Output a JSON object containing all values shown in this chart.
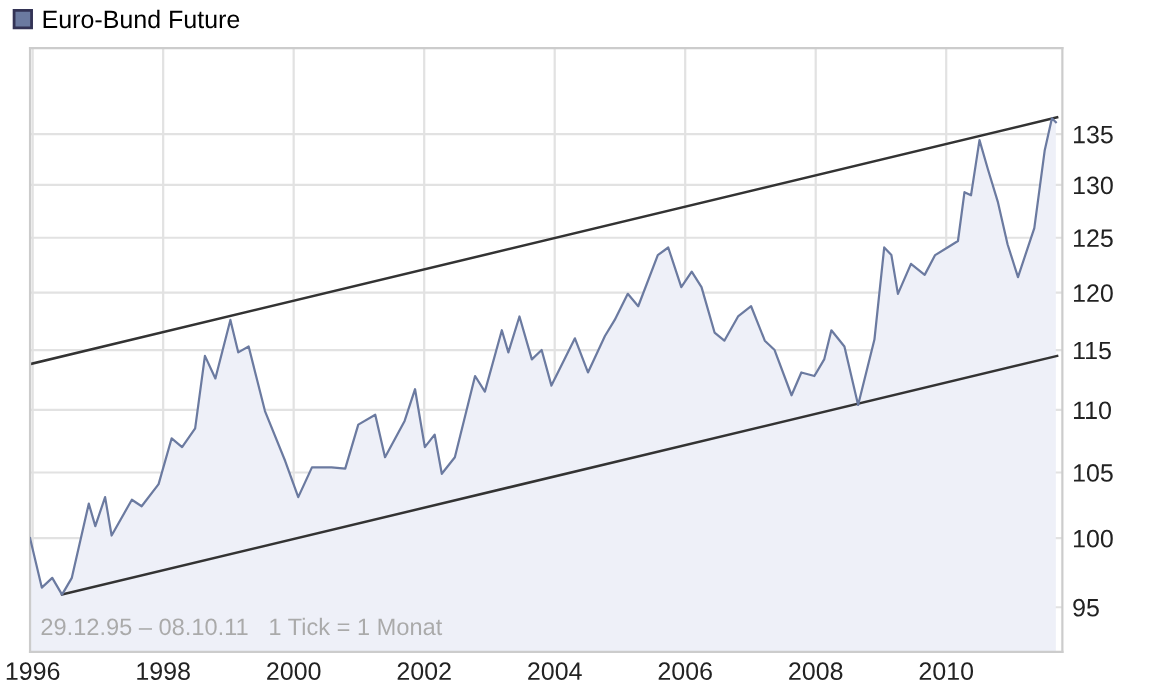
{
  "chart_data": {
    "type": "area",
    "legend": "top left",
    "grid": true,
    "log": "y",
    "xlim": [
      1995.96,
      2011.78
    ],
    "ylim": [
      91.9,
      143.9
    ],
    "xticks": [
      {
        "value": 1996,
        "label": "1996"
      },
      {
        "value": 1998,
        "label": "1998"
      },
      {
        "value": 2000,
        "label": "2000"
      },
      {
        "value": 2002,
        "label": "2002"
      },
      {
        "value": 2004,
        "label": "2004"
      },
      {
        "value": 2006,
        "label": "2006"
      },
      {
        "value": 2008,
        "label": "2008"
      },
      {
        "value": 2010,
        "label": "2010"
      }
    ],
    "yticks": [
      95,
      100,
      105,
      110,
      115,
      120,
      125,
      130,
      135
    ],
    "annotations": [
      "29.12.95 – 08.10.11   1 Tick = 1 Monat"
    ],
    "series": [
      {
        "name": "Euro-Bund Future",
        "color": "#6b7aa0",
        "x": [
          1995.96,
          1996.14,
          1996.3,
          1996.45,
          1996.6,
          1996.86,
          1996.96,
          1997.11,
          1997.21,
          1997.52,
          1997.67,
          1997.93,
          1998.13,
          1998.29,
          1998.49,
          1998.64,
          1998.8,
          1999.03,
          1999.15,
          1999.31,
          1999.56,
          1999.87,
          2000.07,
          2000.28,
          2000.58,
          2000.79,
          2000.99,
          2001.25,
          2001.4,
          2001.7,
          2001.86,
          2002.01,
          2002.16,
          2002.27,
          2002.47,
          2002.78,
          2002.93,
          2003.19,
          2003.29,
          2003.46,
          2003.65,
          2003.8,
          2003.95,
          2004.31,
          2004.51,
          2004.77,
          2004.92,
          2005.12,
          2005.28,
          2005.58,
          2005.74,
          2005.94,
          2006.1,
          2006.25,
          2006.45,
          2006.6,
          2006.81,
          2007.01,
          2007.22,
          2007.37,
          2007.63,
          2007.78,
          2007.98,
          2008.13,
          2008.24,
          2008.44,
          2008.65,
          2008.9,
          2009.05,
          2009.16,
          2009.26,
          2009.46,
          2009.67,
          2009.83,
          2010.02,
          2010.18,
          2010.28,
          2010.38,
          2010.51,
          2010.64,
          2010.79,
          2010.94,
          2011.1,
          2011.35,
          2011.51,
          2011.62,
          2011.68
        ],
        "values": [
          100.0,
          96.4,
          97.1,
          95.9,
          97.1,
          102.6,
          100.9,
          103.1,
          100.2,
          102.9,
          102.4,
          104.1,
          107.7,
          107.0,
          108.5,
          114.5,
          112.6,
          117.6,
          114.8,
          115.3,
          109.9,
          105.9,
          103.1,
          105.4,
          105.4,
          105.3,
          108.8,
          109.6,
          106.2,
          109.1,
          111.7,
          107.0,
          108.0,
          104.9,
          106.2,
          112.8,
          111.5,
          116.7,
          114.8,
          117.9,
          114.2,
          115.0,
          112.0,
          116.0,
          113.1,
          116.2,
          117.6,
          119.9,
          118.8,
          123.4,
          124.1,
          120.5,
          121.9,
          120.5,
          116.5,
          115.8,
          117.9,
          118.8,
          115.8,
          115.0,
          111.2,
          113.1,
          112.8,
          114.2,
          116.7,
          115.3,
          110.4,
          115.9,
          124.1,
          123.4,
          119.9,
          122.6,
          121.6,
          123.4,
          124.1,
          124.7,
          129.3,
          129.0,
          134.4,
          131.5,
          128.4,
          124.4,
          121.4,
          125.9,
          133.4,
          136.6,
          136.2
        ]
      },
      {
        "type": "line",
        "color": "#333333",
        "x": [
          1995.96,
          2011.7
        ],
        "values": [
          113.8,
          136.7
        ]
      },
      {
        "type": "line",
        "color": "#333333",
        "x": [
          1996.45,
          2011.7
        ],
        "values": [
          95.9,
          114.5
        ]
      }
    ]
  }
}
